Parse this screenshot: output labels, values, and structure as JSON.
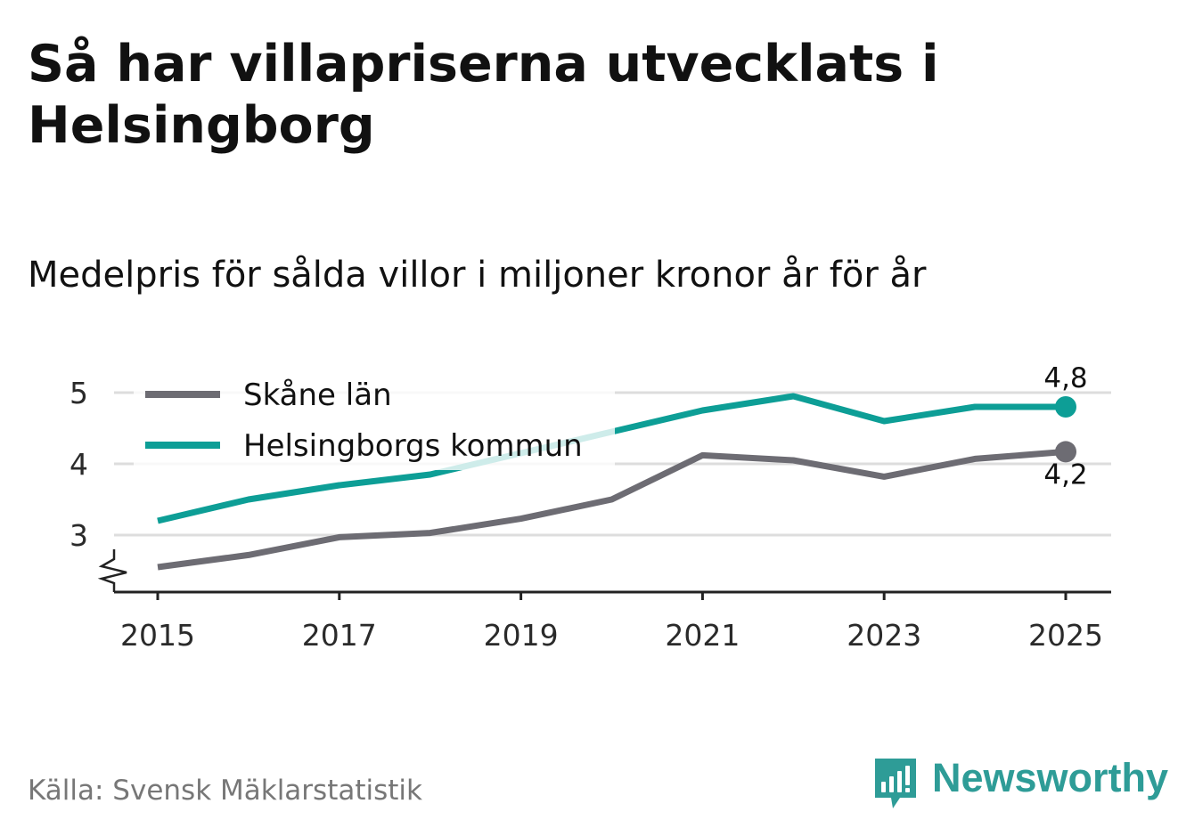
{
  "title": "Så har villapriserna utvecklats i Helsingborg",
  "subtitle": "Medelpris för sålda villor i miljoner kronor år för år",
  "source": "Källa: Svensk Mäklarstatistik",
  "brand": {
    "name": "Newsworthy",
    "icon": "newsworthy-logo-icon"
  },
  "colors": {
    "skane": "#6d6c73",
    "helsingborg": "#0d9e96",
    "grid": "#dddddd",
    "axis": "#222222"
  },
  "chart_data": {
    "type": "line",
    "title": "Så har villapriserna utvecklats i Helsingborg",
    "subtitle": "Medelpris för sålda villor i miljoner kronor år för år",
    "x": [
      2015,
      2016,
      2017,
      2018,
      2019,
      2020,
      2021,
      2022,
      2023,
      2024,
      2025
    ],
    "x_ticks": [
      "2015",
      "2017",
      "2019",
      "2021",
      "2023",
      "2025"
    ],
    "y_ticks": [
      "3",
      "4",
      "5"
    ],
    "ylim": [
      2.2,
      5.3
    ],
    "y_axis_break": true,
    "grid": true,
    "legend": "top-left",
    "series": [
      {
        "name": "Skåne län",
        "color": "#6d6c73",
        "values": [
          2.55,
          2.72,
          2.97,
          3.03,
          3.23,
          3.5,
          4.12,
          4.05,
          3.82,
          4.07,
          4.17
        ],
        "end_label": "4,2"
      },
      {
        "name": "Helsingborgs kommun",
        "color": "#0d9e96",
        "values": [
          3.2,
          3.5,
          3.7,
          3.85,
          4.15,
          4.45,
          4.75,
          4.95,
          4.6,
          4.8,
          4.8
        ],
        "end_label": "4,8"
      }
    ]
  }
}
